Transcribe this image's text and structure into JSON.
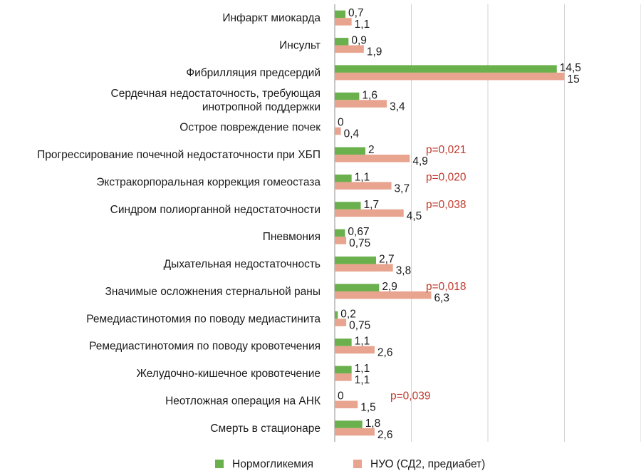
{
  "chart_data": {
    "type": "bar",
    "orientation": "horizontal",
    "categories": [
      "Инфаркт миокарда",
      "Инсульт",
      "Фибрилляция предсердий",
      [
        "Сердечная недостаточность, требующая",
        "инотропной поддержки"
      ],
      "Острое повреждение почек",
      "Прогрессирование почечной недостаточности при ХБП",
      "Экстракорпоральная коррекция гомеостаза",
      "Синдром полиорганной недостаточности",
      "Пневмония",
      "Дыхательная недостаточность",
      "Значимые осложнения стернальной раны",
      "Ремедиастинотомия по поводу медиастинита",
      "Ремедиастинотомия по поводу кровотечения",
      "Желудочно-кишечное кровотечение",
      "Неотложная операция на АНК",
      "Смерть в стационаре"
    ],
    "series": [
      {
        "name": "Нормогликемия",
        "color": "#6ab04c",
        "values": [
          0.7,
          0.9,
          14.5,
          1.6,
          0,
          2,
          1.1,
          1.7,
          0.67,
          2.7,
          2.9,
          0.2,
          1.1,
          1.1,
          0,
          1.8
        ],
        "labels": [
          "0,7",
          "0,9",
          "14,5",
          "1,6",
          "0",
          "2",
          "1,1",
          "1,7",
          "0,67",
          "2,7",
          "2,9",
          "0,2",
          "1,1",
          "1,1",
          "0",
          "1,8"
        ]
      },
      {
        "name": "НУО (СД2, предиабет)",
        "color": "#e8a48e",
        "values": [
          1.1,
          1.9,
          15,
          3.4,
          0.4,
          4.9,
          3.7,
          4.5,
          0.75,
          3.8,
          6.3,
          0.75,
          2.6,
          1.1,
          1.5,
          2.6
        ],
        "labels": [
          "1,1",
          "1,9",
          "15",
          "3,4",
          "0,4",
          "4,9",
          "3,7",
          "4,5",
          "0,75",
          "3,8",
          "6,3",
          "0,75",
          "2,6",
          "1,1",
          "1,5",
          "2,6"
        ]
      }
    ],
    "annotations": [
      "",
      "",
      "",
      "",
      "",
      "p=0,021",
      "p=0,020",
      "p=0,038",
      "",
      "",
      "p=0,018",
      "",
      "",
      "",
      "p=0,039",
      ""
    ],
    "annotation_color": "#c0392b",
    "xlim": [
      0,
      20
    ],
    "grid": true,
    "legend_position": "bottom",
    "title": "",
    "xlabel": "",
    "ylabel": ""
  }
}
